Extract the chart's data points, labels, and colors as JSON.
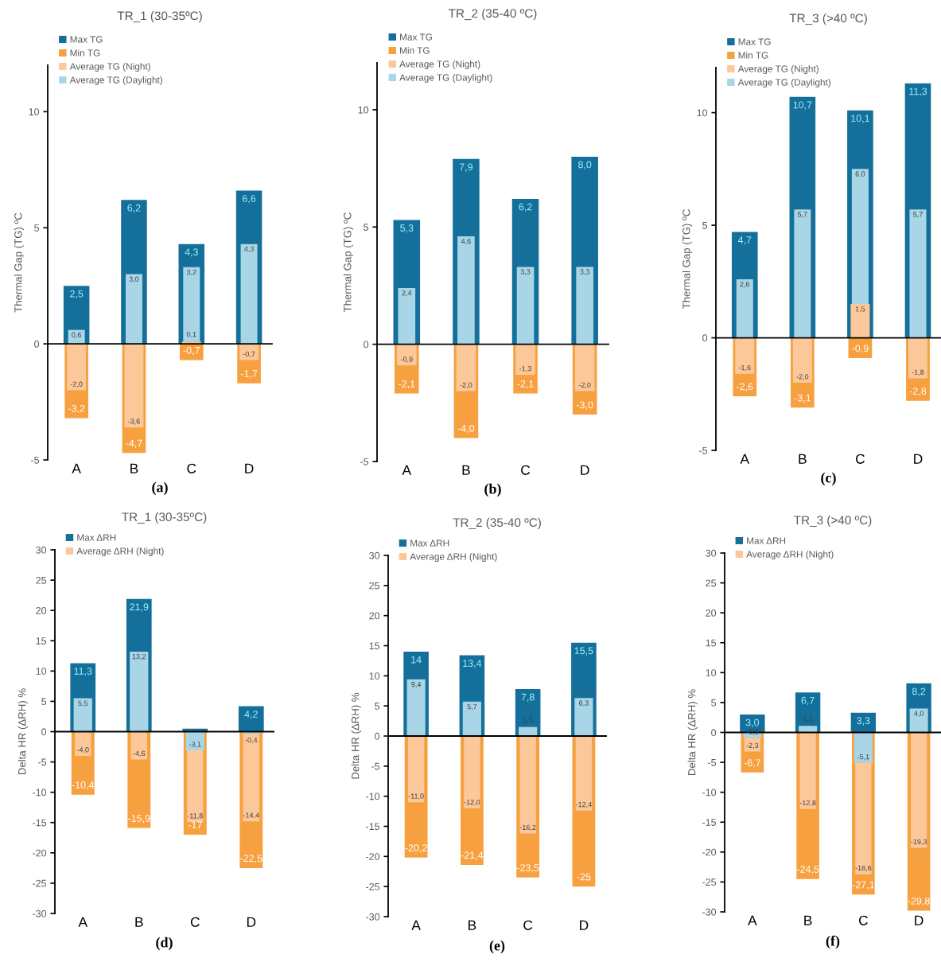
{
  "chart_data": [
    {
      "type": "bar",
      "title": "TR_1 (30-35ºC)",
      "ylabel": "Thermal Gap (TG) ºC",
      "categories": [
        "A",
        "B",
        "C",
        "D"
      ],
      "series": [
        {
          "name": "Max TG",
          "color": "#14709b",
          "values": [
            2.5,
            6.2,
            4.3,
            6.6
          ],
          "value_labels": [
            "2,5",
            "6,2",
            "4,3",
            "6,6"
          ]
        },
        {
          "name": "Min TG",
          "color": "#f7a040",
          "values": [
            -3.2,
            -4.7,
            -0.7,
            -1.7
          ],
          "value_labels": [
            "-3,2",
            "-4,7",
            "-0,7",
            "-1,7"
          ]
        },
        {
          "name": "Average TG (Night)",
          "color": "#fcc899",
          "values": [
            -2.0,
            -3.6,
            0.1,
            -0.7
          ],
          "value_labels": [
            "-2,0",
            "-3,6",
            "0,1",
            "-0,7"
          ]
        },
        {
          "name": "Average TG (Daylight)",
          "color": "#a9d6e6",
          "values": [
            0.6,
            3.0,
            3.2,
            4.3
          ],
          "base": [
            null,
            null,
            0.1,
            null
          ],
          "value_labels": [
            "0,6",
            "3,0",
            "3,2",
            "4,3"
          ]
        }
      ],
      "ylim": [
        -5,
        12
      ],
      "yticks": [
        -5,
        0,
        5,
        10
      ],
      "legend": "top left",
      "annotations": [
        "(a)"
      ]
    },
    {
      "type": "bar",
      "title": "TR_2 (35-40 ºC)",
      "ylabel": "Thermal Gap (TG) ºC",
      "categories": [
        "A",
        "B",
        "C",
        "D"
      ],
      "series": [
        {
          "name": "Max TG",
          "color": "#14709b",
          "values": [
            5.3,
            7.9,
            6.2,
            8.0
          ],
          "value_labels": [
            "5,3",
            "7,9",
            "6,2",
            "8,0"
          ]
        },
        {
          "name": "Min TG",
          "color": "#f7a040",
          "values": [
            -2.1,
            -4.0,
            -2.1,
            -3.0
          ],
          "value_labels": [
            "-2,1",
            "-4,0",
            "-2,1",
            "-3,0"
          ]
        },
        {
          "name": "Average TG (Night)",
          "color": "#fcc899",
          "values": [
            -0.9,
            -2.0,
            -1.3,
            -2.0
          ],
          "value_labels": [
            "-0,9",
            "-2,0",
            "-1,3",
            "-2,0"
          ]
        },
        {
          "name": "Average TG (Daylight)",
          "color": "#a9d6e6",
          "values": [
            2.4,
            4.6,
            3.3,
            3.3
          ],
          "value_labels": [
            "2,4",
            "4,6",
            "3,3",
            "3,3"
          ]
        }
      ],
      "ylim": [
        -5,
        12
      ],
      "yticks": [
        -5,
        0,
        5,
        10
      ],
      "legend": "top left",
      "annotations": [
        "(b)"
      ]
    },
    {
      "type": "bar",
      "title": "TR_3 (>40 ºC)",
      "ylabel": "Thermal Gap (TG) ºC",
      "categories": [
        "A",
        "B",
        "C",
        "D"
      ],
      "series": [
        {
          "name": "Max TG",
          "color": "#14709b",
          "values": [
            4.7,
            10.7,
            10.1,
            11.3
          ],
          "value_labels": [
            "4,7",
            "10,7",
            "10,1",
            "11,3"
          ]
        },
        {
          "name": "Min TG",
          "color": "#f7a040",
          "values": [
            -2.6,
            -3.1,
            -0.9,
            -2.8
          ],
          "value_labels": [
            "-2,6",
            "-3,1",
            "-0,9",
            "-2,8"
          ]
        },
        {
          "name": "Average TG (Night)",
          "color": "#fcc899",
          "values": [
            -1.6,
            -2.0,
            1.5,
            -1.8
          ],
          "value_labels": [
            "-1,6",
            "-2,0",
            "1,5",
            "-1,8"
          ]
        },
        {
          "name": "Average TG (Daylight)",
          "color": "#a9d6e6",
          "values": [
            2.6,
            5.7,
            6.0,
            5.7
          ],
          "base": [
            null,
            null,
            1.5,
            null
          ],
          "value_labels": [
            "2,6",
            "5,7",
            "6,0",
            "5,7"
          ]
        }
      ],
      "ylim": [
        -5,
        12
      ],
      "yticks": [
        -5,
        0,
        5,
        10
      ],
      "legend": "top left",
      "annotations": [
        "(c)"
      ]
    },
    {
      "type": "bar",
      "title": "TR_1 (30-35ºC)",
      "ylabel": "Delta HR (ΔRH) %",
      "categories": [
        "A",
        "B",
        "C",
        "D"
      ],
      "series": [
        {
          "name": "Max ΔRH",
          "color": "#14709b",
          "values": [
            11.3,
            21.9,
            0.5,
            4.2
          ],
          "value_labels": [
            "11,3",
            "21,9",
            null,
            "4,2"
          ]
        },
        {
          "color": "#f7a040",
          "values": [
            -10.4,
            -15.9,
            -17,
            -22.5
          ],
          "value_labels": [
            "-10,4",
            "-15,9",
            "-17",
            "-22,5"
          ]
        },
        {
          "color": "#a9d6e6",
          "values": [
            5.5,
            13.2,
            -3.1,
            -0.4
          ],
          "value_labels": [
            "5,5",
            "13,2",
            "-3,1",
            "-0,4"
          ]
        },
        {
          "name": "Average ΔRH (Night)",
          "color": "#fcc899",
          "values": [
            -4.0,
            -4.6,
            -11.8,
            -14.4
          ],
          "base": [
            null,
            null,
            -3.1,
            -0.4
          ],
          "value_labels": [
            "-4,0",
            "-4,6",
            "-11,8",
            "-14,4"
          ]
        }
      ],
      "ylim": [
        -30,
        30
      ],
      "yticks": [
        -30,
        -25,
        -20,
        -15,
        -10,
        -5,
        0,
        5,
        10,
        15,
        20,
        25,
        30
      ],
      "legend": "top left",
      "annotations": [
        "(d)"
      ]
    },
    {
      "type": "bar",
      "title": "TR_2 (35-40 ºC)",
      "ylabel": "Delta HR (ΔRH) %",
      "categories": [
        "A",
        "B",
        "C",
        "D"
      ],
      "series": [
        {
          "name": "Max ΔRH",
          "color": "#14709b",
          "values": [
            14,
            13.4,
            7.8,
            15.5
          ],
          "value_labels": [
            "14",
            "13,4",
            "7,8",
            "15,5"
          ]
        },
        {
          "color": "#f7a040",
          "values": [
            -20.2,
            -21.4,
            -23.5,
            -25
          ],
          "value_labels": [
            "-20,2",
            "-21,4",
            "-23,5",
            "-25"
          ]
        },
        {
          "color": "#a9d6e6",
          "values": [
            9.4,
            5.7,
            1.5,
            6.3
          ],
          "value_labels": [
            "9,4",
            "5,7",
            "1,5",
            "6,3"
          ]
        },
        {
          "name": "Average ΔRH (Night)",
          "color": "#fcc899",
          "values": [
            -11.0,
            -12.0,
            -16.2,
            -12.4
          ],
          "value_labels": [
            "-11,0",
            "-12,0",
            "-16,2",
            "-12,4"
          ]
        }
      ],
      "ylim": [
        -30,
        30
      ],
      "yticks": [
        -30,
        -25,
        -20,
        -15,
        -10,
        -5,
        0,
        5,
        10,
        15,
        20,
        25,
        30
      ],
      "legend": "top left",
      "annotations": [
        "(e)"
      ]
    },
    {
      "type": "bar",
      "title": "TR_3 (>40 ºC)",
      "ylabel": "Delta HR (ΔRH) %",
      "categories": [
        "A",
        "B",
        "C",
        "D"
      ],
      "series": [
        {
          "name": "Max ΔRH",
          "color": "#14709b",
          "values": [
            3.0,
            6.7,
            3.3,
            8.2
          ],
          "value_labels": [
            "3,0",
            "6,7",
            "3,3",
            "8,2"
          ]
        },
        {
          "color": "#f7a040",
          "values": [
            -6.7,
            -24.5,
            -27.1,
            -29.8
          ],
          "value_labels": [
            "-6,7",
            "-24,5",
            "-27,1",
            "-29,8"
          ]
        },
        {
          "color": "#a9d6e6",
          "values": [
            -0.9,
            1.1,
            -5.1,
            4.0
          ],
          "value_labels": [
            "-0,9",
            "1,1",
            "-5,1",
            "4,0"
          ]
        },
        {
          "name": "Average ΔRH (Night)",
          "color": "#fcc899",
          "values": [
            -2.3,
            -12.8,
            -18.6,
            -19.3
          ],
          "base": [
            -0.9,
            null,
            -5.1,
            null
          ],
          "value_labels": [
            "-2,3",
            "-12,8",
            "-18,6",
            "-19,3"
          ]
        }
      ],
      "ylim": [
        -30,
        30
      ],
      "yticks": [
        -30,
        -25,
        -20,
        -15,
        -10,
        -5,
        0,
        5,
        10,
        15,
        20,
        25,
        30
      ],
      "legend": "top left",
      "annotations": [
        "(f)"
      ]
    }
  ]
}
